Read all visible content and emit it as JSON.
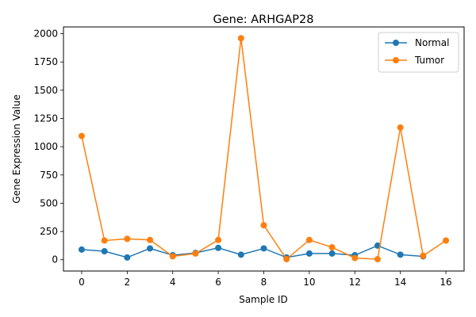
{
  "chart_data": {
    "type": "line",
    "title": "Gene: ARHGAP28",
    "xlabel": "Sample ID",
    "ylabel": "Gene Expression Value",
    "xlim": [
      -0.8,
      16.8
    ],
    "ylim": [
      -100,
      2060
    ],
    "xticks": [
      0,
      2,
      4,
      6,
      8,
      10,
      12,
      14,
      16
    ],
    "yticks": [
      0,
      250,
      500,
      750,
      1000,
      1250,
      1500,
      1750,
      2000
    ],
    "legend_position": "top-right",
    "grid": false,
    "series": [
      {
        "name": "Normal",
        "color": "#1f77b4",
        "x": [
          0,
          1,
          2,
          3,
          4,
          5,
          6,
          7,
          8,
          9,
          10,
          11,
          12,
          13,
          14,
          15
        ],
        "values": [
          90,
          75,
          20,
          100,
          40,
          60,
          105,
          45,
          100,
          20,
          55,
          55,
          40,
          125,
          45,
          30
        ]
      },
      {
        "name": "Tumor",
        "color": "#ff7f0e",
        "x": [
          0,
          1,
          2,
          3,
          4,
          5,
          6,
          7,
          8,
          9,
          10,
          11,
          12,
          13,
          14,
          15,
          16
        ],
        "values": [
          1095,
          170,
          185,
          175,
          30,
          55,
          175,
          1960,
          305,
          5,
          175,
          110,
          15,
          5,
          1170,
          35,
          170
        ]
      }
    ]
  }
}
